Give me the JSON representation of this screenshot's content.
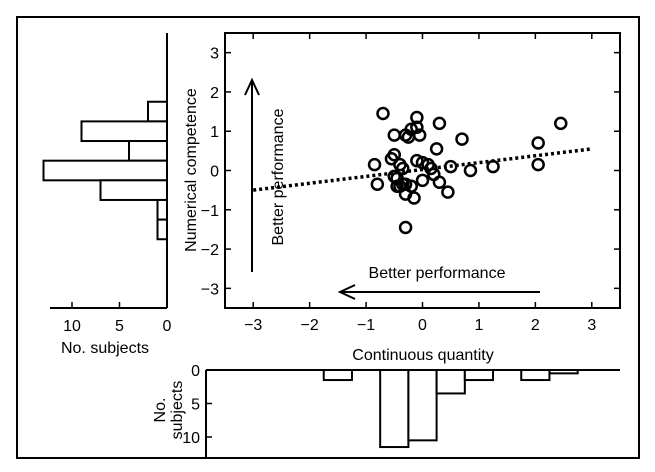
{
  "chart_data": [
    {
      "type": "scatter",
      "xlabel": "Continuous quantity",
      "ylabel": "Numerical competence",
      "xlim": [
        -3.5,
        3.5
      ],
      "ylim": [
        -3.5,
        3.5
      ],
      "xticks": [
        -3,
        -2,
        -1,
        0,
        1,
        2,
        3
      ],
      "yticks": [
        -3,
        -2,
        -1,
        0,
        1,
        2,
        3
      ],
      "grid": false,
      "x": [
        -0.7,
        -0.5,
        -0.3,
        -0.55,
        -0.5,
        -0.25,
        -0.2,
        -0.1,
        -0.05,
        -0.1,
        -0.4,
        -0.35,
        -0.45,
        -0.35,
        -0.3,
        -0.5,
        -0.45,
        -0.4,
        -0.3,
        -0.2,
        -0.15,
        -0.1,
        0.1,
        0.15,
        0.2,
        0.25,
        0.3,
        0.7,
        0.3,
        0.45,
        0.5,
        0.85,
        1.25,
        2.05,
        2.05,
        2.45,
        -0.85,
        -0.8,
        -0.3,
        0.0,
        0.0
      ],
      "y": [
        1.45,
        0.9,
        0.9,
        0.3,
        0.4,
        0.85,
        1.05,
        1.35,
        0.9,
        1.1,
        0.15,
        0.05,
        -0.2,
        -0.35,
        -0.6,
        -0.15,
        -0.4,
        -0.4,
        -0.35,
        -0.4,
        -0.7,
        0.25,
        0.15,
        0.05,
        -0.1,
        0.55,
        1.2,
        0.8,
        -0.3,
        -0.55,
        0.1,
        0.0,
        0.1,
        0.15,
        0.7,
        1.2,
        0.15,
        -0.35,
        -1.45,
        0.2,
        -0.25
      ],
      "trendline": {
        "style": "dotted",
        "x": [
          -3,
          3
        ],
        "y": [
          -0.5,
          0.55
        ]
      },
      "annotations": [
        {
          "text": "Better performance",
          "direction": "up"
        },
        {
          "text": "Better performance",
          "direction": "left"
        }
      ]
    },
    {
      "type": "bar",
      "orientation": "horizontal",
      "xlabel": "No. subjects",
      "xticks": [
        10,
        5,
        0
      ],
      "bin_centers": [
        1.5,
        1,
        0.5,
        0,
        -0.5,
        -1,
        -1.5
      ],
      "values": [
        2,
        9,
        4,
        13,
        7,
        1,
        1
      ]
    },
    {
      "type": "bar",
      "orientation": "vertical",
      "ylabel": "No. subjects",
      "yticks": [
        0,
        5,
        10
      ],
      "bin_centers": [
        -1.5,
        -0.5,
        0,
        0.5,
        1,
        2,
        2.5
      ],
      "values": [
        1.5,
        11.5,
        10.5,
        3.5,
        1.5,
        1.5,
        0.5
      ]
    }
  ]
}
